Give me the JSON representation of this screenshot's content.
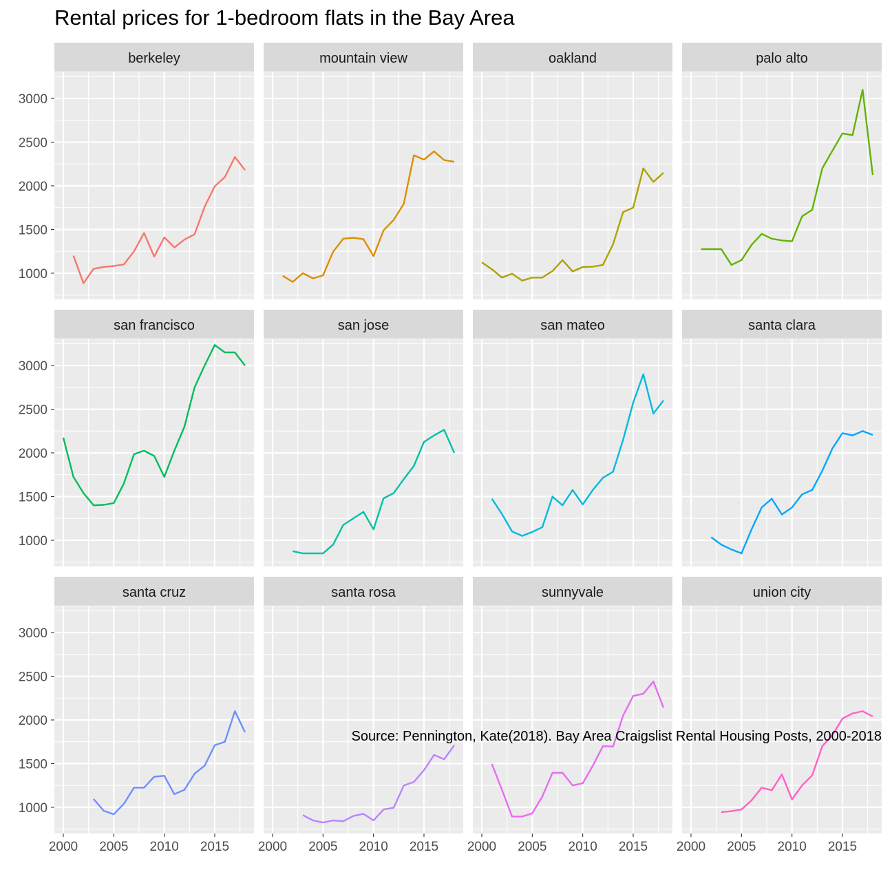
{
  "chart_data": {
    "type": "line",
    "title": "Rental prices for 1-bedroom flats in the Bay Area",
    "caption": "Source: Pennington, Kate(2018). Bay Area Craigslist Rental Housing Posts, 2000-2018",
    "xlabel": "",
    "ylabel": "",
    "xlim": [
      2000,
      2018
    ],
    "ylim": [
      700,
      3300
    ],
    "x_ticks": [
      2000,
      2005,
      2010,
      2015
    ],
    "y_ticks": [
      1000,
      1500,
      2000,
      2500,
      3000
    ],
    "facet_columns": 4,
    "grid": true,
    "legend": "none",
    "panel_background": "#ebebeb",
    "strip_background": "#d9d9d9",
    "grid_color": "#ffffff",
    "series": [
      {
        "name": "berkeley",
        "color": "#F8766D",
        "x": [
          2001,
          2002,
          2003,
          2004,
          2005,
          2006,
          2007,
          2008,
          2009,
          2010,
          2011,
          2012,
          2013,
          2014,
          2015,
          2016,
          2017,
          2018
        ],
        "y": [
          1200,
          885,
          1050,
          1072,
          1082,
          1100,
          1250,
          1460,
          1190,
          1410,
          1295,
          1385,
          1445,
          1760,
          1995,
          2100,
          2330,
          2180
        ]
      },
      {
        "name": "mountain view",
        "color": "#DB8E00",
        "x": [
          2001,
          2002,
          2003,
          2004,
          2005,
          2006,
          2007,
          2008,
          2009,
          2010,
          2011,
          2012,
          2013,
          2014,
          2015,
          2016,
          2017,
          2018
        ],
        "y": [
          970,
          900,
          1000,
          940,
          975,
          1245,
          1395,
          1405,
          1390,
          1195,
          1490,
          1610,
          1795,
          2350,
          2300,
          2395,
          2295,
          2275
        ]
      },
      {
        "name": "oakland",
        "color": "#AEA200",
        "x": [
          2000,
          2001,
          2002,
          2003,
          2004,
          2005,
          2006,
          2007,
          2008,
          2009,
          2010,
          2011,
          2012,
          2013,
          2014,
          2015,
          2016,
          2017,
          2018
        ],
        "y": [
          1125,
          1045,
          950,
          995,
          915,
          950,
          950,
          1025,
          1150,
          1020,
          1070,
          1075,
          1095,
          1330,
          1700,
          1750,
          2200,
          2045,
          2150
        ]
      },
      {
        "name": "palo alto",
        "color": "#64B200",
        "x": [
          2001,
          2002,
          2003,
          2004,
          2005,
          2006,
          2007,
          2008,
          2009,
          2010,
          2011,
          2012,
          2013,
          2014,
          2015,
          2016,
          2017,
          2018
        ],
        "y": [
          1275,
          1275,
          1275,
          1095,
          1150,
          1325,
          1450,
          1395,
          1375,
          1365,
          1650,
          1725,
          2200,
          2400,
          2600,
          2580,
          3100,
          2125
        ]
      },
      {
        "name": "san francisco",
        "color": "#00BD5C",
        "x": [
          2000,
          2001,
          2002,
          2003,
          2004,
          2005,
          2006,
          2007,
          2008,
          2009,
          2010,
          2011,
          2012,
          2013,
          2014,
          2015,
          2016,
          2017,
          2018
        ],
        "y": [
          2175,
          1725,
          1540,
          1400,
          1405,
          1425,
          1650,
          1985,
          2025,
          1965,
          1725,
          2025,
          2300,
          2750,
          3000,
          3235,
          3150,
          3150,
          3000
        ]
      },
      {
        "name": "san jose",
        "color": "#00C1A7",
        "x": [
          2002,
          2003,
          2004,
          2005,
          2006,
          2007,
          2008,
          2009,
          2010,
          2011,
          2012,
          2013,
          2014,
          2015,
          2016,
          2017,
          2018
        ],
        "y": [
          875,
          850,
          850,
          850,
          950,
          1175,
          1250,
          1325,
          1125,
          1480,
          1540,
          1700,
          1850,
          2125,
          2200,
          2265,
          2000
        ]
      },
      {
        "name": "san mateo",
        "color": "#00BADE",
        "x": [
          2001,
          2002,
          2003,
          2004,
          2005,
          2006,
          2007,
          2008,
          2009,
          2010,
          2011,
          2012,
          2013,
          2014,
          2015,
          2016,
          2017,
          2018
        ],
        "y": [
          1475,
          1300,
          1100,
          1050,
          1095,
          1150,
          1500,
          1400,
          1575,
          1410,
          1575,
          1715,
          1785,
          2150,
          2575,
          2900,
          2450,
          2600
        ]
      },
      {
        "name": "santa clara",
        "color": "#00A6FF",
        "x": [
          2002,
          2003,
          2004,
          2005,
          2006,
          2007,
          2008,
          2009,
          2010,
          2011,
          2012,
          2013,
          2014,
          2015,
          2016,
          2017,
          2018
        ],
        "y": [
          1035,
          950,
          895,
          850,
          1125,
          1375,
          1475,
          1295,
          1375,
          1525,
          1575,
          1795,
          2050,
          2225,
          2200,
          2250,
          2205
        ]
      },
      {
        "name": "santa cruz",
        "color": "#6E8FFF",
        "x": [
          2003,
          2004,
          2005,
          2006,
          2007,
          2008,
          2009,
          2010,
          2011,
          2012,
          2013,
          2014,
          2015,
          2016,
          2017,
          2018
        ],
        "y": [
          1095,
          960,
          920,
          1040,
          1225,
          1225,
          1350,
          1360,
          1150,
          1200,
          1385,
          1475,
          1710,
          1750,
          2100,
          1860
        ]
      },
      {
        "name": "santa rosa",
        "color": "#B983FF",
        "x": [
          2003,
          2004,
          2005,
          2006,
          2007,
          2008,
          2009,
          2010,
          2011,
          2012,
          2013,
          2014,
          2015,
          2016,
          2017,
          2018
        ],
        "y": [
          910,
          850,
          825,
          850,
          840,
          900,
          925,
          850,
          975,
          995,
          1250,
          1290,
          1425,
          1600,
          1550,
          1710
        ]
      },
      {
        "name": "sunnyvale",
        "color": "#E76BF3",
        "x": [
          2001,
          2002,
          2003,
          2004,
          2005,
          2006,
          2007,
          2008,
          2009,
          2010,
          2011,
          2012,
          2013,
          2014,
          2015,
          2016,
          2017,
          2018
        ],
        "y": [
          1495,
          1200,
          895,
          895,
          930,
          1125,
          1395,
          1395,
          1250,
          1275,
          1475,
          1700,
          1695,
          2050,
          2275,
          2300,
          2440,
          2140
        ]
      },
      {
        "name": "union city",
        "color": "#FF61C6",
        "x": [
          2003,
          2004,
          2005,
          2006,
          2007,
          2008,
          2009,
          2010,
          2011,
          2012,
          2013,
          2014,
          2015,
          2016,
          2017,
          2018
        ],
        "y": [
          945,
          955,
          975,
          1080,
          1225,
          1195,
          1375,
          1090,
          1250,
          1365,
          1700,
          1825,
          2015,
          2075,
          2100,
          2040
        ]
      }
    ]
  }
}
